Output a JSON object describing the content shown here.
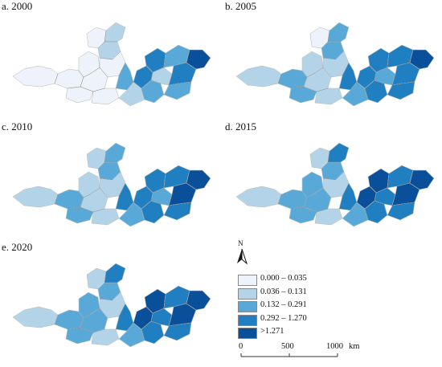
{
  "panels": [
    {
      "id": "a",
      "label": "a. 2000",
      "level": [
        0,
        0,
        0,
        0,
        1,
        0,
        1,
        0,
        2,
        0,
        0,
        1,
        2,
        3,
        1,
        2,
        3,
        4,
        2,
        3
      ]
    },
    {
      "id": "b",
      "label": "b. 2005",
      "level": [
        1,
        2,
        1,
        0,
        2,
        1,
        2,
        1,
        3,
        2,
        1,
        2,
        3,
        3,
        2,
        3,
        3,
        4,
        3,
        3
      ]
    },
    {
      "id": "c",
      "label": "c. 2010",
      "level": [
        1,
        2,
        1,
        1,
        2,
        1,
        2,
        1,
        3,
        2,
        1,
        2,
        3,
        3,
        2,
        3,
        4,
        4,
        3,
        3
      ]
    },
    {
      "id": "d",
      "label": "d. 2015",
      "level": [
        1,
        2,
        2,
        1,
        2,
        1,
        3,
        2,
        3,
        2,
        1,
        2,
        3,
        4,
        3,
        3,
        4,
        4,
        3,
        4
      ]
    },
    {
      "id": "e",
      "label": "e. 2020",
      "level": [
        1,
        2,
        2,
        1,
        2,
        1,
        3,
        2,
        3,
        2,
        1,
        2,
        3,
        4,
        3,
        3,
        4,
        4,
        3,
        4
      ]
    }
  ],
  "legend": {
    "north_letter": "N",
    "classes": [
      {
        "label": "0.000 – 0.035",
        "color": "#eef3fb"
      },
      {
        "label": "0.036 – 0.131",
        "color": "#b3d3e8"
      },
      {
        "label": "0.132 – 0.291",
        "color": "#58a9d8"
      },
      {
        "label": "0.292 – 1.270",
        "color": "#1f7fc1"
      },
      {
        "label": ">1.271",
        "color": "#0a4f9a"
      }
    ],
    "scale": {
      "t0": "0",
      "t1": "500",
      "t2": "1000",
      "unit": "km"
    }
  }
}
